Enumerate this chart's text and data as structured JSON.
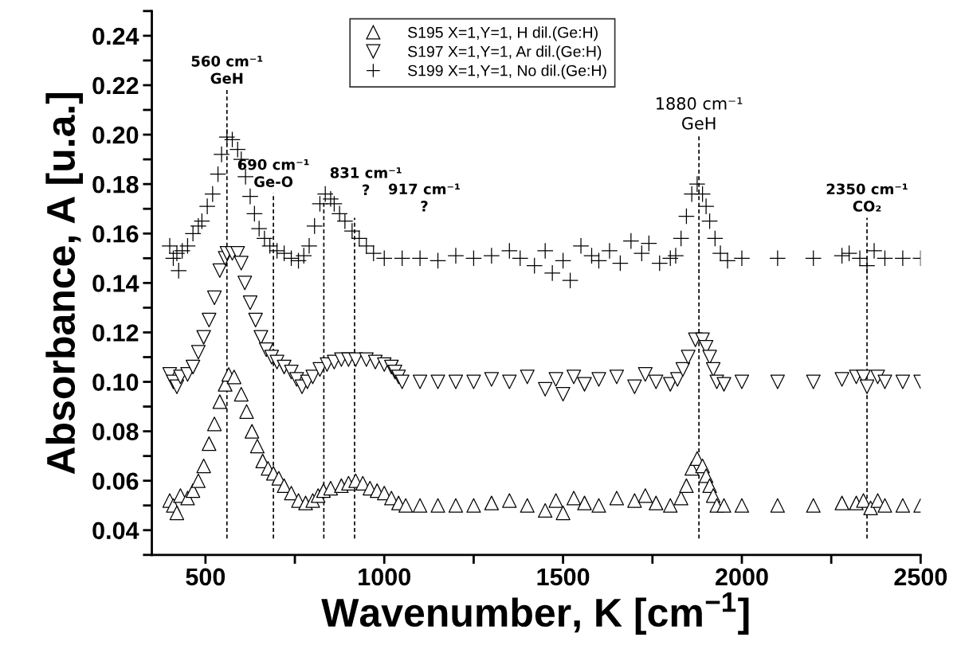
{
  "chart_data": {
    "type": "scatter",
    "xlabel": "Wavenumber, K [cm$^{−1}$]",
    "ylabel": "Absorbance, A [u.a.]",
    "xlim": [
      350,
      2500
    ],
    "ylim": [
      0.03,
      0.25
    ],
    "xticks": [
      500,
      {
        "value": 750,
        "label": null
      },
      1000,
      {
        "value": 1250,
        "label": null
      },
      1500,
      {
        "value": 1750,
        "label": null
      },
      2000,
      {
        "value": 2250,
        "label": null
      },
      2500
    ],
    "yticks": [
      {
        "value": 0.03,
        "label": null
      },
      0.04,
      {
        "value": 0.05,
        "label": null
      },
      0.06,
      {
        "value": 0.07,
        "label": null
      },
      0.08,
      {
        "value": 0.09,
        "label": null
      },
      {
        "value": 0.1,
        "label": "0.10"
      },
      {
        "value": 0.11,
        "label": null
      },
      0.12,
      {
        "value": 0.13,
        "label": null
      },
      0.14,
      {
        "value": 0.15,
        "label": null
      },
      0.16,
      {
        "value": 0.17,
        "label": null
      },
      0.18,
      {
        "value": 0.19,
        "label": null
      },
      {
        "value": 0.2,
        "label": "0.20"
      },
      {
        "value": 0.21,
        "label": null
      },
      0.22,
      {
        "value": 0.23,
        "label": null
      },
      0.24,
      {
        "value": 0.25,
        "label": null
      }
    ],
    "grid": false,
    "legend": "top",
    "series": [
      {
        "name": "S195 X=1,Y=1, H dil.(Ge:H)",
        "color": "#000000",
        "marker": "triangle",
        "x": [
          400,
          410,
          420,
          430,
          450,
          465,
          480,
          495,
          510,
          525,
          540,
          555,
          565,
          580,
          600,
          615,
          630,
          645,
          660,
          675,
          690,
          705,
          720,
          740,
          760,
          780,
          800,
          815,
          830,
          850,
          880,
          900,
          920,
          940,
          960,
          980,
          1000,
          1020,
          1040,
          1060,
          1100,
          1150,
          1200,
          1250,
          1300,
          1350,
          1400,
          1450,
          1480,
          1500,
          1530,
          1560,
          1600,
          1650,
          1700,
          1730,
          1760,
          1800,
          1830,
          1845,
          1860,
          1875,
          1890,
          1900,
          1910,
          1920,
          1930,
          1950,
          2000,
          2100,
          2200,
          2280,
          2320,
          2340,
          2360,
          2380,
          2400,
          2450,
          2500
        ],
        "values": [
          0.052,
          0.05,
          0.047,
          0.054,
          0.053,
          0.056,
          0.06,
          0.066,
          0.075,
          0.083,
          0.092,
          0.099,
          0.103,
          0.102,
          0.095,
          0.088,
          0.08,
          0.074,
          0.068,
          0.065,
          0.063,
          0.061,
          0.058,
          0.055,
          0.052,
          0.051,
          0.052,
          0.054,
          0.056,
          0.057,
          0.058,
          0.059,
          0.06,
          0.059,
          0.057,
          0.056,
          0.055,
          0.053,
          0.051,
          0.05,
          0.05,
          0.05,
          0.05,
          0.05,
          0.051,
          0.052,
          0.05,
          0.048,
          0.052,
          0.047,
          0.053,
          0.051,
          0.05,
          0.053,
          0.052,
          0.054,
          0.051,
          0.05,
          0.053,
          0.058,
          0.065,
          0.069,
          0.066,
          0.062,
          0.058,
          0.054,
          0.05,
          0.05,
          0.05,
          0.05,
          0.05,
          0.051,
          0.051,
          0.052,
          0.049,
          0.052,
          0.05,
          0.05,
          0.05
        ]
      },
      {
        "name": "S197 X=1,Y=1, Ar dil.(Ge:H)",
        "color": "#000000",
        "marker": "triangle_down",
        "x": [
          400,
          410,
          420,
          430,
          450,
          465,
          480,
          495,
          510,
          525,
          540,
          555,
          560,
          575,
          590,
          600,
          610,
          625,
          640,
          655,
          670,
          685,
          700,
          720,
          740,
          755,
          770,
          785,
          800,
          820,
          840,
          860,
          880,
          900,
          920,
          950,
          975,
          1000,
          1020,
          1030,
          1040,
          1050,
          1100,
          1150,
          1200,
          1250,
          1300,
          1350,
          1400,
          1450,
          1480,
          1500,
          1530,
          1560,
          1600,
          1650,
          1700,
          1730,
          1760,
          1800,
          1820,
          1835,
          1850,
          1870,
          1890,
          1900,
          1910,
          1920,
          1930,
          1950,
          2000,
          2100,
          2200,
          2280,
          2320,
          2340,
          2350,
          2380,
          2400,
          2450,
          2500
        ],
        "values": [
          0.103,
          0.1,
          0.098,
          0.102,
          0.103,
          0.106,
          0.112,
          0.118,
          0.125,
          0.134,
          0.145,
          0.15,
          0.152,
          0.152,
          0.152,
          0.148,
          0.14,
          0.132,
          0.125,
          0.118,
          0.113,
          0.11,
          0.108,
          0.106,
          0.104,
          0.101,
          0.098,
          0.1,
          0.102,
          0.105,
          0.107,
          0.108,
          0.109,
          0.109,
          0.109,
          0.109,
          0.108,
          0.107,
          0.106,
          0.104,
          0.102,
          0.1,
          0.1,
          0.1,
          0.1,
          0.1,
          0.101,
          0.1,
          0.102,
          0.097,
          0.101,
          0.095,
          0.102,
          0.099,
          0.101,
          0.102,
          0.098,
          0.103,
          0.1,
          0.099,
          0.101,
          0.105,
          0.11,
          0.117,
          0.117,
          0.114,
          0.11,
          0.105,
          0.1,
          0.099,
          0.1,
          0.1,
          0.1,
          0.101,
          0.102,
          0.102,
          0.098,
          0.102,
          0.1,
          0.1,
          0.1
        ]
      },
      {
        "name": "S199 X=1,Y=1, No dil.(Ge:H)",
        "color": "#000000",
        "marker": "cross",
        "x": [
          400,
          410,
          420,
          425,
          435,
          450,
          465,
          480,
          490,
          505,
          520,
          535,
          545,
          560,
          575,
          590,
          600,
          612,
          625,
          637,
          650,
          665,
          680,
          700,
          720,
          740,
          760,
          775,
          790,
          805,
          820,
          835,
          850,
          860,
          875,
          890,
          910,
          930,
          950,
          970,
          1000,
          1050,
          1100,
          1150,
          1200,
          1250,
          1300,
          1350,
          1380,
          1420,
          1450,
          1470,
          1500,
          1520,
          1550,
          1580,
          1600,
          1630,
          1660,
          1690,
          1720,
          1740,
          1770,
          1800,
          1815,
          1830,
          1845,
          1860,
          1875,
          1890,
          1900,
          1910,
          1925,
          1940,
          1960,
          2000,
          2100,
          2200,
          2280,
          2300,
          2330,
          2350,
          2370,
          2400,
          2450,
          2500
        ],
        "values": [
          0.155,
          0.15,
          0.152,
          0.145,
          0.153,
          0.155,
          0.16,
          0.163,
          0.165,
          0.171,
          0.176,
          0.184,
          0.192,
          0.199,
          0.198,
          0.194,
          0.19,
          0.183,
          0.175,
          0.168,
          0.162,
          0.158,
          0.155,
          0.153,
          0.152,
          0.15,
          0.149,
          0.151,
          0.155,
          0.163,
          0.172,
          0.176,
          0.174,
          0.172,
          0.168,
          0.165,
          0.161,
          0.158,
          0.155,
          0.152,
          0.15,
          0.15,
          0.15,
          0.149,
          0.151,
          0.15,
          0.151,
          0.153,
          0.15,
          0.147,
          0.153,
          0.144,
          0.149,
          0.141,
          0.155,
          0.151,
          0.149,
          0.153,
          0.148,
          0.157,
          0.152,
          0.156,
          0.148,
          0.15,
          0.151,
          0.158,
          0.167,
          0.176,
          0.18,
          0.176,
          0.171,
          0.165,
          0.158,
          0.152,
          0.149,
          0.15,
          0.15,
          0.15,
          0.151,
          0.152,
          0.15,
          0.147,
          0.153,
          0.15,
          0.15,
          0.15
        ]
      }
    ],
    "ref_lines": [
      {
        "axis": "x",
        "value": 560,
        "line_style": "dashed",
        "color": "#000000",
        "label": "560 cm⁻¹\nGeH"
      },
      {
        "axis": "x",
        "value": 690,
        "line_style": "dashed",
        "color": "#000000",
        "label": "690 cm⁻¹\nGe-O"
      },
      {
        "axis": "x",
        "value": 831,
        "line_style": "dashed",
        "color": "#000000",
        "label": "831 cm⁻¹\n?"
      },
      {
        "axis": "x",
        "value": 917,
        "line_style": "dashed",
        "color": "#000000",
        "label": "917 cm⁻¹\n?"
      },
      {
        "axis": "x",
        "value": 1880,
        "line_style": "dashed",
        "color": "#000000",
        "label": "1880 cm⁻¹\nGeH"
      },
      {
        "axis": "x",
        "value": 2350,
        "line_style": "dashed",
        "color": "#000000",
        "label": "2350 cm⁻¹\nCO₂"
      }
    ]
  }
}
